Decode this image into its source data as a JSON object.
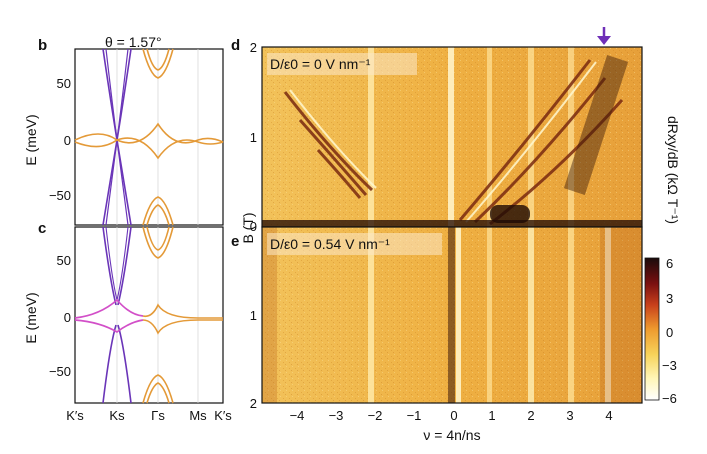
{
  "figure": {
    "panel_labels": [
      "b",
      "c",
      "d",
      "e"
    ],
    "theta_label": "θ = 1.57°",
    "band_axis_label": "E (meV)",
    "band_ticks_y": [
      "50",
      "0",
      "−50"
    ],
    "band_ticks_x": [
      "K′s",
      "Ks",
      "Γs",
      "Ms",
      "K′s"
    ],
    "map_d_annotation": "D/ε0 = 0 V nm⁻¹",
    "map_e_annotation": "D/ε0 = 0.54 V nm⁻¹",
    "map_y_label": "B (T)",
    "map_x_label": "ν = 4n/ns",
    "map_x_ticks": [
      "−4",
      "−3",
      "−2",
      "−1",
      "0",
      "1",
      "2",
      "3",
      "4"
    ],
    "map_d_y_ticks": [
      "2",
      "1",
      "0"
    ],
    "map_e_y_ticks": [
      "1",
      "2"
    ],
    "colorbar_label": "dRxy/dB (kΩ T⁻¹)",
    "colorbar_ticks": [
      "6",
      "3",
      "0",
      "−3",
      "−6"
    ],
    "colors": {
      "purple_band": "#6a35b8",
      "orange_band": "#e49a38",
      "magenta_band": "#d24fc8",
      "arrow": "#6f2fb8",
      "map_base": "#f0b64a"
    },
    "icons": [
      "down-arrow-icon"
    ]
  }
}
